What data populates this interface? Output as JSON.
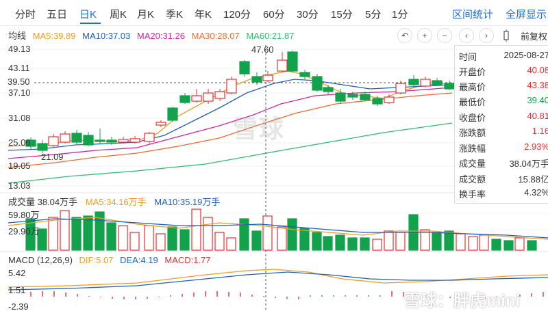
{
  "tabs": [
    "分时",
    "五日",
    "日K",
    "周K",
    "月K",
    "季K",
    "年K",
    "120分",
    "60分",
    "30分",
    "15分",
    "5分",
    "1分"
  ],
  "tab_active": "日K",
  "right_actions": {
    "range_stats": "区间统计",
    "fullscreen": "全屏显示"
  },
  "ma_line": {
    "label": "均线",
    "ma5": "MA5:39.89",
    "ma10": "MA10:37.03",
    "ma20": "MA20:31.26",
    "ma30": "MA30:28.07",
    "ma60": "MA60:21.87"
  },
  "toolbar": {
    "reset_icon": "↶",
    "zoom_in": "+",
    "zoom_out": "−",
    "prev": "‹",
    "next": "›",
    "candle_icon": "candle-icon",
    "adjust_label": "前复权"
  },
  "price_axis": [
    "49.13",
    "43.11",
    "37.10",
    "31.08",
    "25.06",
    "19.05",
    "13.03"
  ],
  "current_price": "39.50",
  "peak_label": "47.60",
  "low_label": "21.09",
  "info_panel": [
    {
      "k": "时间",
      "v": "2025-08-27",
      "c": "normal"
    },
    {
      "k": "开盘价",
      "v": "40.08",
      "c": "red"
    },
    {
      "k": "最高价",
      "v": "43.38",
      "c": "red"
    },
    {
      "k": "最低价",
      "v": "39.40",
      "c": "green"
    },
    {
      "k": "收盘价",
      "v": "40.81",
      "c": "red"
    },
    {
      "k": "涨跌额",
      "v": "1.16",
      "c": "red"
    },
    {
      "k": "涨跌幅",
      "v": "2.93%",
      "c": "red"
    },
    {
      "k": "成交量",
      "v": "38.04万手",
      "c": "normal"
    },
    {
      "k": "成交额",
      "v": "15.88亿",
      "c": "normal"
    },
    {
      "k": "换手率",
      "v": "4.32%",
      "c": "normal"
    }
  ],
  "volume": {
    "title": "成交量 38.04万手",
    "ma5": "MA5:34.16万手",
    "ma10": "MA10:35.19万手",
    "axis_top": "59.80万",
    "axis_mid": "29.90万"
  },
  "macd": {
    "title": "MACD (12,26,9)",
    "dif": "DIF:5.07",
    "dea": "DEA:4.19",
    "macd": "MACD:1.77",
    "axis": [
      "5.42",
      "1.51",
      "-2.39"
    ]
  },
  "watermark": {
    "center": "雪球",
    "corner": "雪球：胖虎mini"
  },
  "colors": {
    "up": "#e83030",
    "down": "#12a24b",
    "ma5": "#f29b1d",
    "ma10": "#1f5fbf",
    "ma20": "#d6229f",
    "ma30": "#f06a2a",
    "ma60": "#2bbd6a",
    "accent": "#1f6ed8"
  }
}
